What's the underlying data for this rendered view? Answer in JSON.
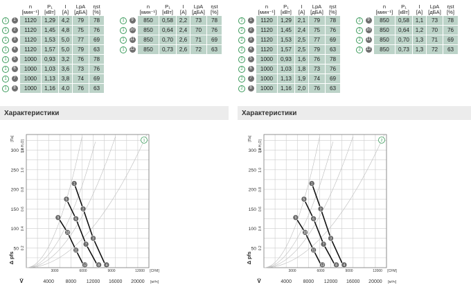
{
  "headers": {
    "n": "n",
    "n_unit": "[мин⁻¹]",
    "p1": "P₁",
    "p1_unit": "[кВт]",
    "i": "I",
    "i_unit": "[A]",
    "lpa": "LpA",
    "lpa_unit": "[дБA]",
    "eff": "ηst",
    "eff_unit": "[%]"
  },
  "section_title": "Характеристики",
  "tables": [
    {
      "marker": "1",
      "left_rows": [
        {
          "id": "1",
          "n": "1120",
          "p1": "1,29",
          "i": "4,2",
          "lpa": "79",
          "eff": "78"
        },
        {
          "id": "2",
          "n": "1120",
          "p1": "1,45",
          "i": "4,8",
          "lpa": "75",
          "eff": "76"
        },
        {
          "id": "3",
          "n": "1120",
          "p1": "1,53",
          "i": "5,0",
          "lpa": "77",
          "eff": "69"
        },
        {
          "id": "4",
          "n": "1120",
          "p1": "1,57",
          "i": "5,0",
          "lpa": "79",
          "eff": "63"
        },
        {
          "id": "5",
          "n": "1000",
          "p1": "0,93",
          "i": "3,2",
          "lpa": "76",
          "eff": "78"
        },
        {
          "id": "6",
          "n": "1000",
          "p1": "1,03",
          "i": "3,6",
          "lpa": "73",
          "eff": "76"
        },
        {
          "id": "7",
          "n": "1000",
          "p1": "1,13",
          "i": "3,8",
          "lpa": "74",
          "eff": "69"
        },
        {
          "id": "8",
          "n": "1000",
          "p1": "1,16",
          "i": "4,0",
          "lpa": "76",
          "eff": "63"
        }
      ],
      "right_rows": [
        {
          "id": "9",
          "n": "850",
          "p1": "0,58",
          "i": "2,2",
          "lpa": "73",
          "eff": "78"
        },
        {
          "id": "10",
          "n": "850",
          "p1": "0,64",
          "i": "2,4",
          "lpa": "70",
          "eff": "76"
        },
        {
          "id": "11",
          "n": "850",
          "p1": "0,70",
          "i": "2,6",
          "lpa": "71",
          "eff": "69"
        },
        {
          "id": "12",
          "n": "850",
          "p1": "0,73",
          "i": "2,6",
          "lpa": "72",
          "eff": "63"
        }
      ]
    },
    {
      "marker": "2",
      "left_rows": [
        {
          "id": "1",
          "n": "1120",
          "p1": "1,29",
          "i": "2,1",
          "lpa": "79",
          "eff": "78"
        },
        {
          "id": "2",
          "n": "1120",
          "p1": "1,45",
          "i": "2,4",
          "lpa": "75",
          "eff": "76"
        },
        {
          "id": "3",
          "n": "1120",
          "p1": "1,53",
          "i": "2,5",
          "lpa": "77",
          "eff": "69"
        },
        {
          "id": "4",
          "n": "1120",
          "p1": "1,57",
          "i": "2,5",
          "lpa": "79",
          "eff": "63"
        },
        {
          "id": "5",
          "n": "1000",
          "p1": "0,93",
          "i": "1,6",
          "lpa": "76",
          "eff": "78"
        },
        {
          "id": "6",
          "n": "1000",
          "p1": "1,03",
          "i": "1,8",
          "lpa": "73",
          "eff": "76"
        },
        {
          "id": "7",
          "n": "1000",
          "p1": "1,13",
          "i": "1,9",
          "lpa": "74",
          "eff": "69"
        },
        {
          "id": "8",
          "n": "1000",
          "p1": "1,16",
          "i": "2,0",
          "lpa": "76",
          "eff": "63"
        }
      ],
      "right_rows": [
        {
          "id": "9",
          "n": "850",
          "p1": "0,58",
          "i": "1,1",
          "lpa": "73",
          "eff": "78"
        },
        {
          "id": "10",
          "n": "850",
          "p1": "0,64",
          "i": "1,2",
          "lpa": "70",
          "eff": "76"
        },
        {
          "id": "11",
          "n": "850",
          "p1": "0,70",
          "i": "1,3",
          "lpa": "71",
          "eff": "69"
        },
        {
          "id": "12",
          "n": "850",
          "p1": "0,73",
          "i": "1,3",
          "lpa": "72",
          "eff": "63"
        }
      ]
    }
  ],
  "chart_data": [
    {
      "type": "line",
      "marker": "1",
      "y_pa_ticks": [
        "50",
        "100",
        "150",
        "200",
        "250",
        "300"
      ],
      "y_pa_unit": "[Па]",
      "y_inwg_ticks": [
        "0.2",
        "0.4",
        "0.6",
        "0.8",
        "1.0",
        "1.2"
      ],
      "y_inwg_unit": "[in H₂O]",
      "ylabel": "Δ pfs",
      "x_cfm_ticks": [
        "3000",
        "6000",
        "9000",
        "12000"
      ],
      "x_cfm_unit": "[CFM]",
      "x_m3h_ticks": [
        "4000",
        "8000",
        "12000",
        "16000",
        "20000"
      ],
      "x_m3h_unit": "[м³/ч]",
      "xlabel": "V̇",
      "xlim_m3h": [
        0,
        22000
      ],
      "ylim_pa": [
        0,
        340
      ],
      "series": [
        {
          "points": [
            {
              "label": "1",
              "x": 8600,
              "y": 215
            },
            {
              "label": "2",
              "x": 10200,
              "y": 150
            },
            {
              "label": "3",
              "x": 12000,
              "y": 75
            },
            {
              "label": "4",
              "x": 14400,
              "y": 0
            }
          ]
        },
        {
          "points": [
            {
              "label": "5",
              "x": 7200,
              "y": 175
            },
            {
              "label": "6",
              "x": 8900,
              "y": 125
            },
            {
              "label": "7",
              "x": 10700,
              "y": 60
            },
            {
              "label": "8",
              "x": 13000,
              "y": 0
            }
          ]
        },
        {
          "points": [
            {
              "label": "9",
              "x": 5700,
              "y": 128
            },
            {
              "label": "10",
              "x": 7400,
              "y": 90
            },
            {
              "label": "11",
              "x": 8900,
              "y": 45
            },
            {
              "label": "12",
              "x": 10500,
              "y": 0
            }
          ]
        }
      ]
    },
    {
      "type": "line",
      "marker": "2",
      "y_pa_ticks": [
        "50",
        "100",
        "150",
        "200",
        "250",
        "300"
      ],
      "y_pa_unit": "[Па]",
      "y_inwg_ticks": [
        "0.2",
        "0.4",
        "0.6",
        "0.8",
        "1.0",
        "1.2"
      ],
      "y_inwg_unit": "[in H₂O]",
      "ylabel": "Δ pfs",
      "x_cfm_ticks": [
        "3000",
        "6000",
        "9000",
        "12000"
      ],
      "x_cfm_unit": "[CFM]",
      "x_m3h_ticks": [
        "4000",
        "8000",
        "12000",
        "16000",
        "20000"
      ],
      "x_m3h_unit": "[м³/ч]",
      "xlabel": "V̇",
      "xlim_m3h": [
        0,
        22000
      ],
      "ylim_pa": [
        0,
        340
      ],
      "series": [
        {
          "points": [
            {
              "label": "1",
              "x": 8600,
              "y": 215
            },
            {
              "label": "2",
              "x": 10200,
              "y": 150
            },
            {
              "label": "3",
              "x": 12000,
              "y": 75
            },
            {
              "label": "4",
              "x": 14400,
              "y": 0
            }
          ]
        },
        {
          "points": [
            {
              "label": "5",
              "x": 7200,
              "y": 175
            },
            {
              "label": "6",
              "x": 8900,
              "y": 125
            },
            {
              "label": "7",
              "x": 10700,
              "y": 60
            },
            {
              "label": "8",
              "x": 13000,
              "y": 0
            }
          ]
        },
        {
          "points": [
            {
              "label": "9",
              "x": 5700,
              "y": 128
            },
            {
              "label": "10",
              "x": 7400,
              "y": 90
            },
            {
              "label": "11",
              "x": 8900,
              "y": 45
            },
            {
              "label": "12",
              "x": 10500,
              "y": 0
            }
          ]
        }
      ]
    }
  ]
}
